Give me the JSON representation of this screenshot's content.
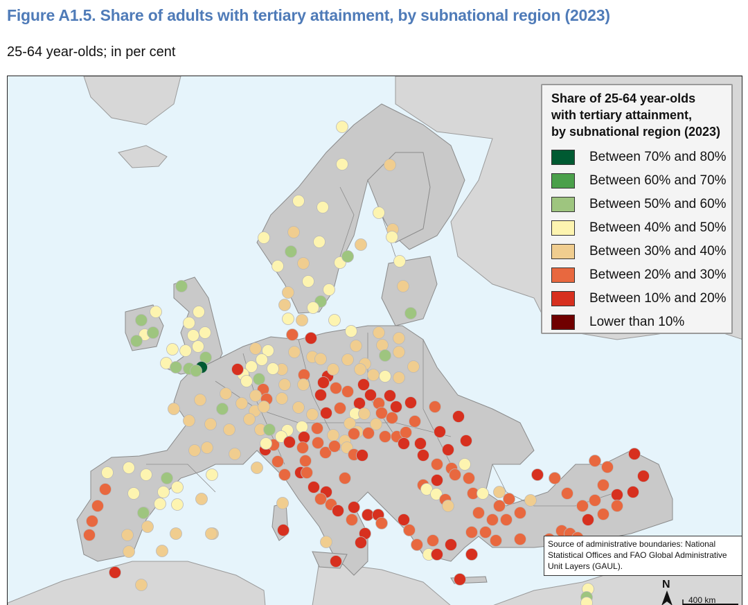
{
  "figure": {
    "title": "Figure A1.5. Share of adults with tertiary attainment, by subnational region (2023)",
    "subtitle": "25-64 year-olds; in per cent"
  },
  "legend": {
    "title_lines": [
      "Share of 25-64 year-olds",
      "with tertiary attainment,",
      "by subnational region (2023)"
    ],
    "items": [
      {
        "label": "Between 70% and 80%",
        "color": "#005a32"
      },
      {
        "label": "Between 60% and 70%",
        "color": "#4ba04b"
      },
      {
        "label": "Between 50% and 60%",
        "color": "#9ec57f"
      },
      {
        "label": "Between 40% and 50%",
        "color": "#fdf4b0"
      },
      {
        "label": "Between 30% and 40%",
        "color": "#f0cd8f"
      },
      {
        "label": "Between 20% and 30%",
        "color": "#e8683f"
      },
      {
        "label": "Between 10% and 20%",
        "color": "#d7301f"
      },
      {
        "label": "Lower than 10%",
        "color": "#700000"
      }
    ]
  },
  "source_note": "Source of administrative boundaries: National Statistical Offices and FAO Global Administrative Unit Layers (GAUL).",
  "scale_bar": {
    "label": "400 km"
  },
  "north_arrow": {
    "label": "N"
  },
  "map_colors": {
    "sea": "#e6f4fb",
    "land_in_scope": "#c9c9c9",
    "land_outside": "#d7d7d7",
    "border": "#8a8a8a",
    "dot_outline": "#b9b9b9"
  }
}
